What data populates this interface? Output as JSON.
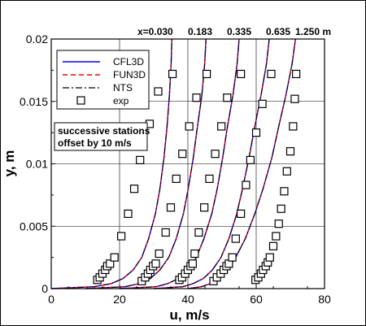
{
  "chart_data": {
    "type": "line",
    "xlabel": "u, m/s",
    "ylabel": "y, m",
    "xlim": [
      0,
      80
    ],
    "ylim": [
      0,
      0.02
    ],
    "xticks": [
      "0",
      "20",
      "40",
      "60",
      "80"
    ],
    "yticks": [
      "0",
      "0.005",
      "0.01",
      "0.015",
      "0.02"
    ],
    "grid": true,
    "station_labels": [
      "x=0.030",
      "0.183",
      "0.335",
      "0.635",
      "1.250 m"
    ],
    "annotation_lines": [
      "successive stations",
      "offset by 10 m/s"
    ],
    "legend": [
      {
        "label": "CFL3D",
        "color": "#0000ff",
        "dash": "solid"
      },
      {
        "label": "FUN3D",
        "color": "#ff0000",
        "dash": "dashed"
      },
      {
        "label": "NTS",
        "color": "#000000",
        "dash": "dashdot"
      },
      {
        "label": "exp",
        "marker": "square"
      }
    ],
    "y": [
      0,
      0.00015,
      0.0004,
      0.0008,
      0.0015,
      0.0025,
      0.004,
      0.006,
      0.008,
      0.0105,
      0.013,
      0.0155,
      0.018,
      0.02
    ],
    "series": [
      {
        "name": "CFL3D",
        "stations": [
          {
            "offset": 0,
            "u": [
              0,
              12.5,
              17.5,
              21.0,
              24.0,
              26.5,
              28.5,
              30.5,
              31.8,
              33.0,
              33.9,
              34.6,
              35.1,
              35.3
            ]
          },
          {
            "offset": 10,
            "u": [
              10,
              21.6,
              25.7,
              29.0,
              31.8,
              34.4,
              36.6,
              38.7,
              40.1,
              41.6,
              42.8,
              44.1,
              44.9,
              45.3
            ]
          },
          {
            "offset": 20,
            "u": [
              20,
              30.7,
              34.1,
              37.2,
              39.9,
              42.5,
              44.7,
              47.0,
              48.6,
              50.2,
              51.6,
              53.2,
              54.4,
              55.0
            ]
          },
          {
            "offset": 30,
            "u": [
              30,
              38.5,
              41.5,
              44.5,
              47.2,
              49.7,
              52.0,
              54.3,
              56.0,
              57.9,
              59.6,
              61.4,
              63.0,
              63.8
            ]
          },
          {
            "offset": 40,
            "u": [
              40,
              44.0,
              46.5,
              49.2,
              51.6,
              54.0,
              56.8,
              59.6,
              62.0,
              64.6,
              66.6,
              68.7,
              70.5,
              71.5
            ]
          }
        ]
      },
      {
        "name": "FUN3D",
        "stations": [
          {
            "offset": 0,
            "u": [
              0,
              12.5,
              17.5,
              21.0,
              24.0,
              26.5,
              28.5,
              30.5,
              31.8,
              33.0,
              33.9,
              34.6,
              35.1,
              35.3
            ]
          },
          {
            "offset": 10,
            "u": [
              10,
              21.6,
              25.7,
              29.0,
              31.8,
              34.4,
              36.6,
              38.7,
              40.1,
              41.6,
              42.8,
              44.1,
              44.9,
              45.3
            ]
          },
          {
            "offset": 20,
            "u": [
              20,
              30.7,
              34.1,
              37.2,
              39.9,
              42.5,
              44.7,
              47.0,
              48.6,
              50.2,
              51.6,
              53.2,
              54.4,
              55.0
            ]
          },
          {
            "offset": 30,
            "u": [
              30,
              38.5,
              41.5,
              44.5,
              47.2,
              49.7,
              52.0,
              54.3,
              56.0,
              57.9,
              59.6,
              61.4,
              63.0,
              63.8
            ]
          },
          {
            "offset": 40,
            "u": [
              40,
              44.0,
              46.5,
              49.2,
              51.6,
              54.0,
              56.8,
              59.6,
              62.0,
              64.6,
              66.6,
              68.7,
              70.5,
              71.5
            ]
          }
        ]
      },
      {
        "name": "NTS",
        "stations": [
          {
            "offset": 0,
            "u": [
              0,
              12.5,
              17.5,
              21.0,
              24.0,
              26.5,
              28.5,
              30.5,
              31.8,
              33.0,
              33.9,
              34.6,
              35.1,
              35.3
            ]
          },
          {
            "offset": 10,
            "u": [
              10,
              21.6,
              25.7,
              29.0,
              31.8,
              34.4,
              36.6,
              38.7,
              40.1,
              41.6,
              42.8,
              44.1,
              44.9,
              45.3
            ]
          },
          {
            "offset": 20,
            "u": [
              20,
              30.7,
              34.1,
              37.2,
              39.9,
              42.5,
              44.7,
              47.0,
              48.6,
              50.2,
              51.6,
              53.2,
              54.4,
              55.0
            ]
          },
          {
            "offset": 30,
            "u": [
              30,
              38.5,
              41.5,
              44.5,
              47.2,
              49.7,
              52.0,
              54.3,
              56.0,
              57.9,
              59.6,
              61.4,
              63.0,
              63.8
            ]
          },
          {
            "offset": 40,
            "u": [
              40,
              44.0,
              46.5,
              49.2,
              51.6,
              54.0,
              56.8,
              59.6,
              62.0,
              64.6,
              66.6,
              68.7,
              70.5,
              71.5
            ]
          }
        ]
      },
      {
        "name": "exp",
        "points": [
          [
            13.5,
            0.0007
          ],
          [
            14.2,
            0.0009
          ],
          [
            15.0,
            0.0012
          ],
          [
            15.8,
            0.0015
          ],
          [
            16.4,
            0.0018
          ],
          [
            17.2,
            0.002
          ],
          [
            18.5,
            0.0025
          ],
          [
            20.5,
            0.0042
          ],
          [
            22.5,
            0.006
          ],
          [
            24.3,
            0.008
          ],
          [
            26.0,
            0.0103
          ],
          [
            28.8,
            0.0132
          ],
          [
            31.3,
            0.0158
          ],
          [
            35.5,
            0.0172
          ],
          [
            26.5,
            0.0006
          ],
          [
            27.5,
            0.0009
          ],
          [
            28.3,
            0.0012
          ],
          [
            29.0,
            0.0015
          ],
          [
            29.8,
            0.0018
          ],
          [
            30.6,
            0.002
          ],
          [
            31.6,
            0.0028
          ],
          [
            33.5,
            0.0045
          ],
          [
            35.0,
            0.0065
          ],
          [
            36.6,
            0.0088
          ],
          [
            38.4,
            0.0108
          ],
          [
            40.4,
            0.013
          ],
          [
            42.5,
            0.0153
          ],
          [
            45.5,
            0.0172
          ],
          [
            37.5,
            0.0007
          ],
          [
            38.3,
            0.0009
          ],
          [
            39.2,
            0.0012
          ],
          [
            40.0,
            0.0015
          ],
          [
            40.8,
            0.0018
          ],
          [
            41.4,
            0.002
          ],
          [
            42.0,
            0.0028
          ],
          [
            43.2,
            0.0045
          ],
          [
            44.8,
            0.0065
          ],
          [
            46.3,
            0.0088
          ],
          [
            48.0,
            0.0108
          ],
          [
            49.8,
            0.013
          ],
          [
            51.5,
            0.0153
          ],
          [
            55.5,
            0.0172
          ],
          [
            47.5,
            0.0006
          ],
          [
            48.5,
            0.0009
          ],
          [
            49.6,
            0.0012
          ],
          [
            50.5,
            0.0015
          ],
          [
            51.3,
            0.0018
          ],
          [
            52.0,
            0.002
          ],
          [
            53.0,
            0.0025
          ],
          [
            54.0,
            0.004
          ],
          [
            55.5,
            0.006
          ],
          [
            57.0,
            0.0083
          ],
          [
            58.3,
            0.0103
          ],
          [
            60.0,
            0.0125
          ],
          [
            61.8,
            0.0148
          ],
          [
            64.4,
            0.0172
          ],
          [
            59.8,
            0.0007
          ],
          [
            60.6,
            0.0009
          ],
          [
            61.4,
            0.0012
          ],
          [
            62.0,
            0.0015
          ],
          [
            62.8,
            0.0018
          ],
          [
            63.4,
            0.0021
          ],
          [
            64.0,
            0.0025
          ],
          [
            65.0,
            0.0034
          ],
          [
            65.8,
            0.0042
          ],
          [
            66.6,
            0.0052
          ],
          [
            67.3,
            0.0064
          ],
          [
            68.2,
            0.0078
          ],
          [
            69.0,
            0.0094
          ],
          [
            70.0,
            0.011
          ],
          [
            70.8,
            0.013
          ],
          [
            71.3,
            0.0152
          ],
          [
            71.7,
            0.0172
          ]
        ]
      }
    ]
  }
}
